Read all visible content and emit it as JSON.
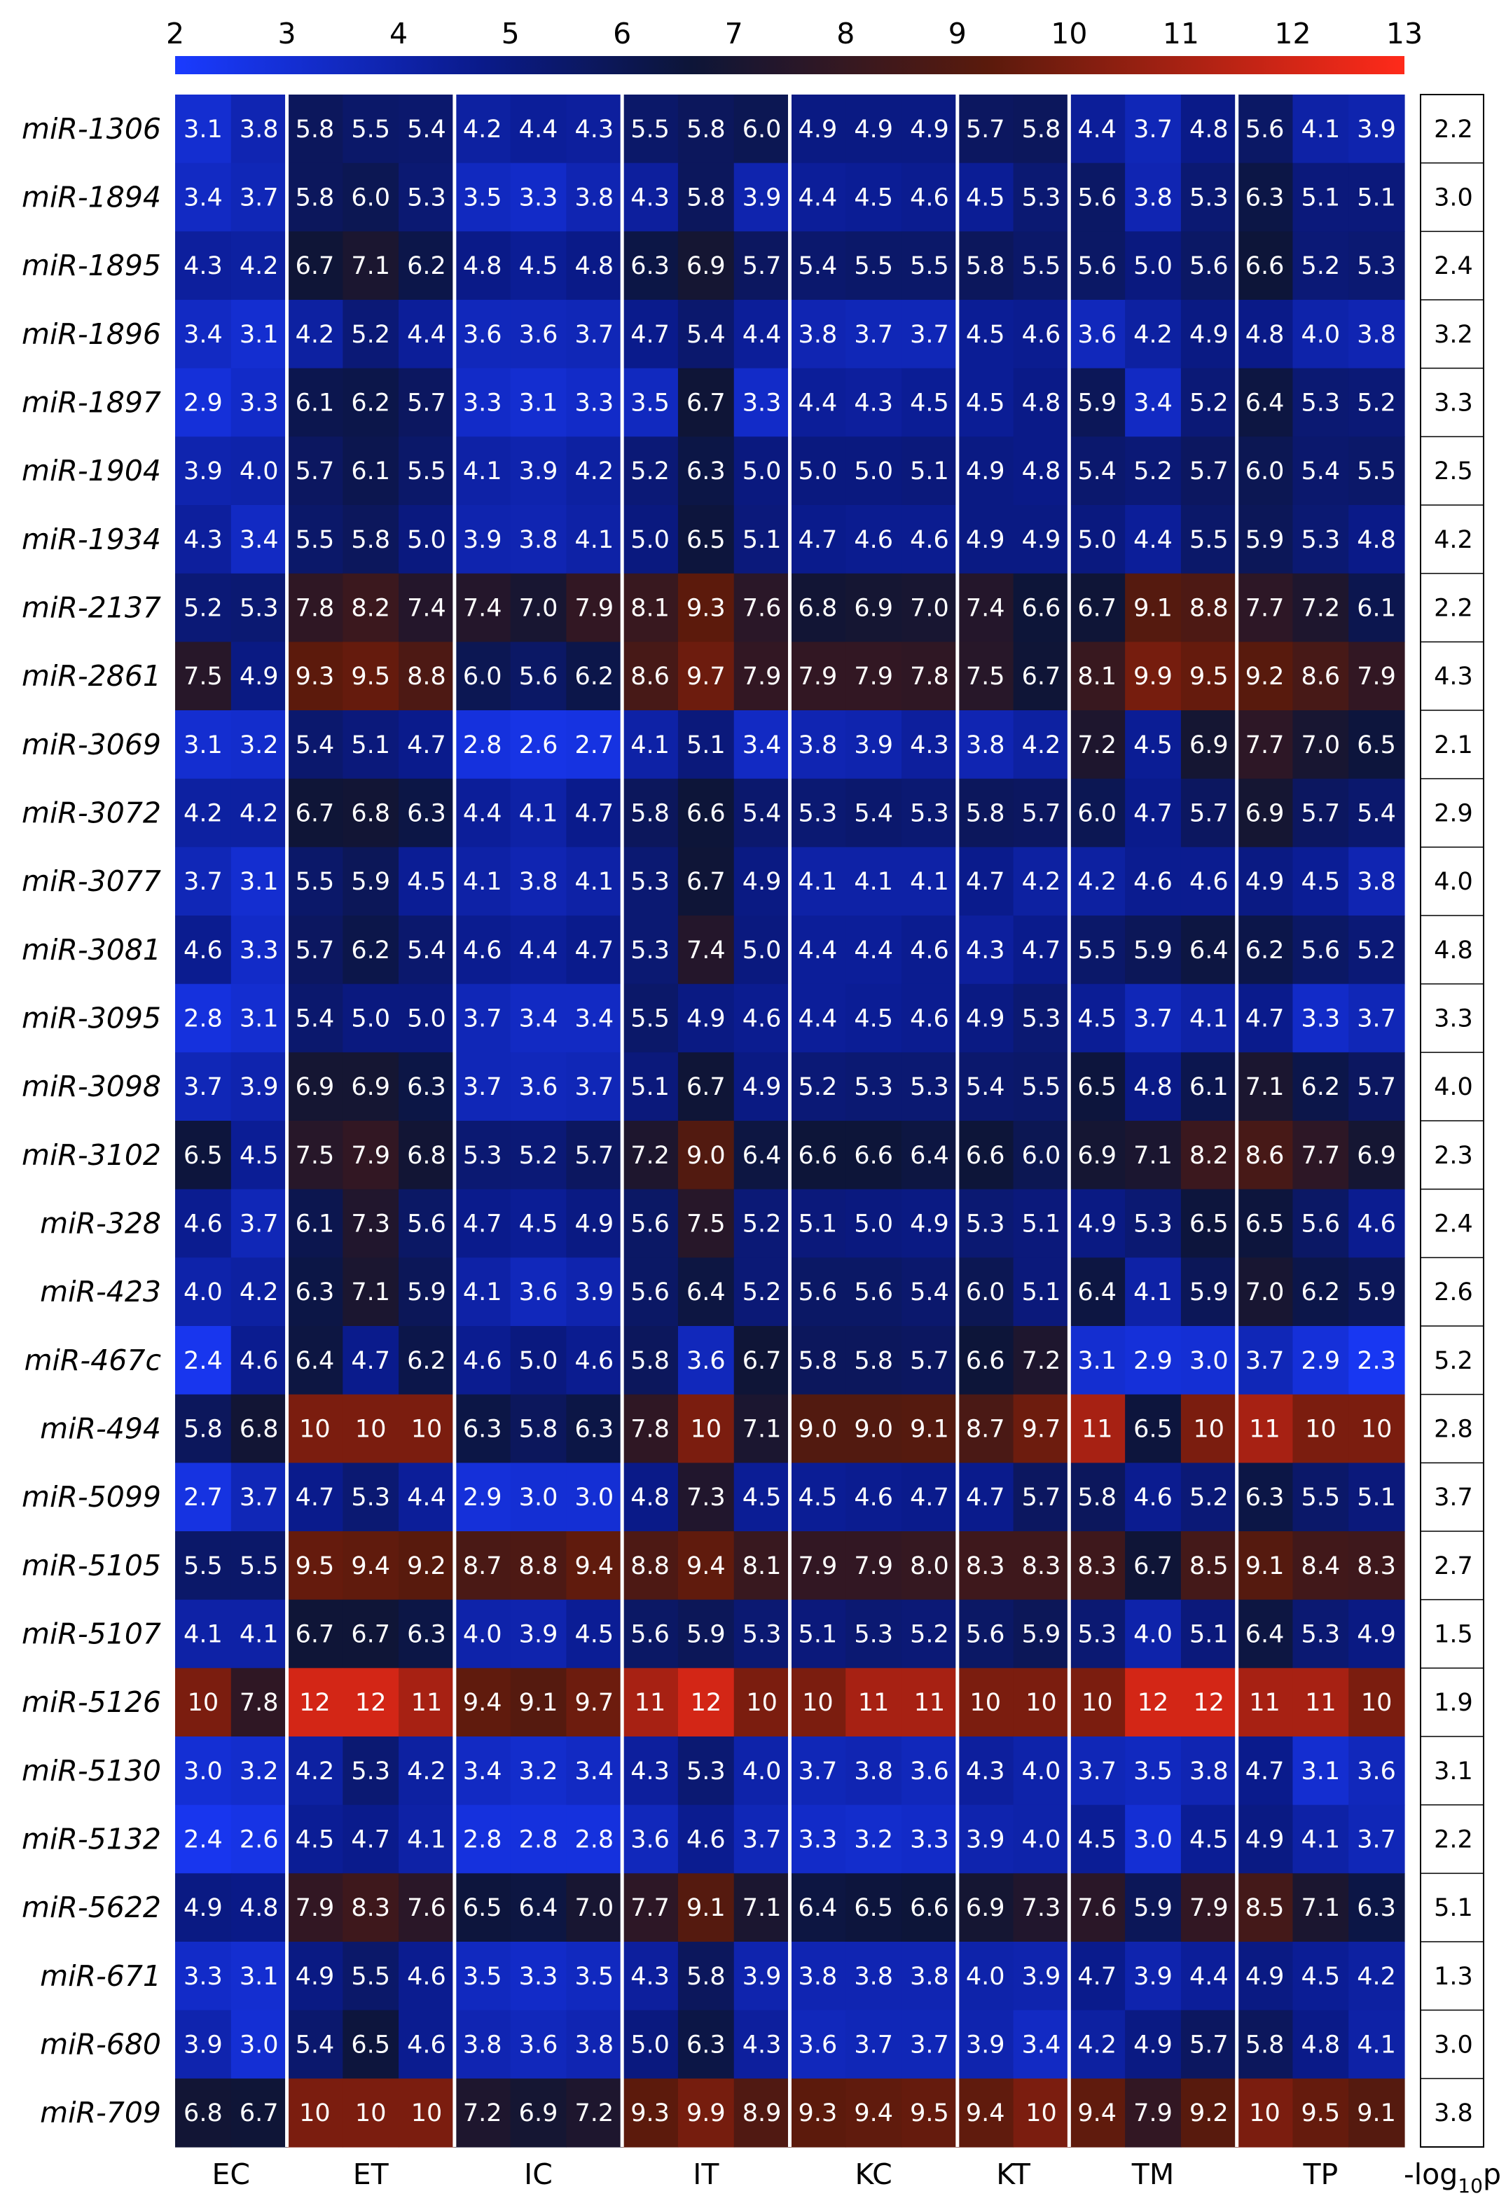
{
  "chart_data": {
    "type": "heatmap",
    "colorbar": {
      "ticks": [
        "2",
        "3",
        "4",
        "5",
        "6",
        "7",
        "8",
        "9",
        "10",
        "11",
        "12",
        "13"
      ],
      "range": [
        2,
        13
      ],
      "colors": [
        "#1a3bff",
        "#0a1a8a",
        "#0d1538",
        "#5a1a0c",
        "#ff2a1a"
      ]
    },
    "groups": [
      {
        "name": "EC",
        "replicates": 2
      },
      {
        "name": "ET",
        "replicates": 3
      },
      {
        "name": "IC",
        "replicates": 3
      },
      {
        "name": "IT",
        "replicates": 3
      },
      {
        "name": "KC",
        "replicates": 3
      },
      {
        "name": "KT",
        "replicates": 2
      },
      {
        "name": "TM",
        "replicates": 3
      },
      {
        "name": "TP",
        "replicates": 3
      }
    ],
    "pvalue_label": "-log10p",
    "rows": [
      {
        "label": "miR-1306",
        "values": [
          "3.1",
          "3.8",
          "5.8",
          "5.5",
          "5.4",
          "4.2",
          "4.4",
          "4.3",
          "5.5",
          "5.8",
          "6.0",
          "4.9",
          "4.9",
          "4.9",
          "5.7",
          "5.8",
          "4.4",
          "3.7",
          "4.8",
          "5.6",
          "4.1",
          "3.9"
        ],
        "p": "2.2"
      },
      {
        "label": "miR-1894",
        "values": [
          "3.4",
          "3.7",
          "5.8",
          "6.0",
          "5.3",
          "3.5",
          "3.3",
          "3.8",
          "4.3",
          "5.8",
          "3.9",
          "4.4",
          "4.5",
          "4.6",
          "4.5",
          "5.3",
          "5.6",
          "3.8",
          "5.3",
          "6.3",
          "5.1",
          "5.1"
        ],
        "p": "3.0"
      },
      {
        "label": "miR-1895",
        "values": [
          "4.3",
          "4.2",
          "6.7",
          "7.1",
          "6.2",
          "4.8",
          "4.5",
          "4.8",
          "6.3",
          "6.9",
          "5.7",
          "5.4",
          "5.5",
          "5.5",
          "5.8",
          "5.5",
          "5.6",
          "5.0",
          "5.6",
          "6.6",
          "5.2",
          "5.3"
        ],
        "p": "2.4"
      },
      {
        "label": "miR-1896",
        "values": [
          "3.4",
          "3.1",
          "4.2",
          "5.2",
          "4.4",
          "3.6",
          "3.6",
          "3.7",
          "4.7",
          "5.4",
          "4.4",
          "3.8",
          "3.7",
          "3.7",
          "4.5",
          "4.6",
          "3.6",
          "4.2",
          "4.9",
          "4.8",
          "4.0",
          "3.8"
        ],
        "p": "3.2"
      },
      {
        "label": "miR-1897",
        "values": [
          "2.9",
          "3.3",
          "6.1",
          "6.2",
          "5.7",
          "3.3",
          "3.1",
          "3.3",
          "3.5",
          "6.7",
          "3.3",
          "4.4",
          "4.3",
          "4.5",
          "4.5",
          "4.8",
          "5.9",
          "3.4",
          "5.2",
          "6.4",
          "5.3",
          "5.2"
        ],
        "p": "3.3"
      },
      {
        "label": "miR-1904",
        "values": [
          "3.9",
          "4.0",
          "5.7",
          "6.1",
          "5.5",
          "4.1",
          "3.9",
          "4.2",
          "5.2",
          "6.3",
          "5.0",
          "5.0",
          "5.0",
          "5.1",
          "4.9",
          "4.8",
          "5.4",
          "5.2",
          "5.7",
          "6.0",
          "5.4",
          "5.5"
        ],
        "p": "2.5"
      },
      {
        "label": "miR-1934",
        "values": [
          "4.3",
          "3.4",
          "5.5",
          "5.8",
          "5.0",
          "3.9",
          "3.8",
          "4.1",
          "5.0",
          "6.5",
          "5.1",
          "4.7",
          "4.6",
          "4.6",
          "4.9",
          "4.9",
          "5.0",
          "4.4",
          "5.5",
          "5.9",
          "5.3",
          "4.8"
        ],
        "p": "4.2"
      },
      {
        "label": "miR-2137",
        "values": [
          "5.2",
          "5.3",
          "7.8",
          "8.2",
          "7.4",
          "7.4",
          "7.0",
          "7.9",
          "8.1",
          "9.3",
          "7.6",
          "6.8",
          "6.9",
          "7.0",
          "7.4",
          "6.6",
          "6.7",
          "9.1",
          "8.8",
          "7.7",
          "7.2",
          "6.1"
        ],
        "p": "2.2"
      },
      {
        "label": "miR-2861",
        "values": [
          "7.5",
          "4.9",
          "9.3",
          "9.5",
          "8.8",
          "6.0",
          "5.6",
          "6.2",
          "8.6",
          "9.7",
          "7.9",
          "7.9",
          "7.9",
          "7.8",
          "7.5",
          "6.7",
          "8.1",
          "9.9",
          "9.5",
          "9.2",
          "8.6",
          "7.9"
        ],
        "p": "4.3"
      },
      {
        "label": "miR-3069",
        "values": [
          "3.1",
          "3.2",
          "5.4",
          "5.1",
          "4.7",
          "2.8",
          "2.6",
          "2.7",
          "4.1",
          "5.1",
          "3.4",
          "3.8",
          "3.9",
          "4.3",
          "3.8",
          "4.2",
          "7.2",
          "4.5",
          "6.9",
          "7.7",
          "7.0",
          "6.5"
        ],
        "p": "2.1"
      },
      {
        "label": "miR-3072",
        "values": [
          "4.2",
          "4.2",
          "6.7",
          "6.8",
          "6.3",
          "4.4",
          "4.1",
          "4.7",
          "5.8",
          "6.6",
          "5.4",
          "5.3",
          "5.4",
          "5.3",
          "5.8",
          "5.7",
          "6.0",
          "4.7",
          "5.7",
          "6.9",
          "5.7",
          "5.4"
        ],
        "p": "2.9"
      },
      {
        "label": "miR-3077",
        "values": [
          "3.7",
          "3.1",
          "5.5",
          "5.9",
          "4.5",
          "4.1",
          "3.8",
          "4.1",
          "5.3",
          "6.7",
          "4.9",
          "4.1",
          "4.1",
          "4.1",
          "4.7",
          "4.2",
          "4.2",
          "4.6",
          "4.6",
          "4.9",
          "4.5",
          "3.8"
        ],
        "p": "4.0"
      },
      {
        "label": "miR-3081",
        "values": [
          "4.6",
          "3.3",
          "5.7",
          "6.2",
          "5.4",
          "4.6",
          "4.4",
          "4.7",
          "5.3",
          "7.4",
          "5.0",
          "4.4",
          "4.4",
          "4.6",
          "4.3",
          "4.7",
          "5.5",
          "5.9",
          "6.4",
          "6.2",
          "5.6",
          "5.2"
        ],
        "p": "4.8"
      },
      {
        "label": "miR-3095",
        "values": [
          "2.8",
          "3.1",
          "5.4",
          "5.0",
          "5.0",
          "3.7",
          "3.4",
          "3.4",
          "5.5",
          "4.9",
          "4.6",
          "4.4",
          "4.5",
          "4.6",
          "4.9",
          "5.3",
          "4.5",
          "3.7",
          "4.1",
          "4.7",
          "3.3",
          "3.7"
        ],
        "p": "3.3"
      },
      {
        "label": "miR-3098",
        "values": [
          "3.7",
          "3.9",
          "6.9",
          "6.9",
          "6.3",
          "3.7",
          "3.6",
          "3.7",
          "5.1",
          "6.7",
          "4.9",
          "5.2",
          "5.3",
          "5.3",
          "5.4",
          "5.5",
          "6.5",
          "4.8",
          "6.1",
          "7.1",
          "6.2",
          "5.7"
        ],
        "p": "4.0"
      },
      {
        "label": "miR-3102",
        "values": [
          "6.5",
          "4.5",
          "7.5",
          "7.9",
          "6.8",
          "5.3",
          "5.2",
          "5.7",
          "7.2",
          "9.0",
          "6.4",
          "6.6",
          "6.6",
          "6.4",
          "6.6",
          "6.0",
          "6.9",
          "7.1",
          "8.2",
          "8.6",
          "7.7",
          "6.9"
        ],
        "p": "2.3"
      },
      {
        "label": "miR-328",
        "values": [
          "4.6",
          "3.7",
          "6.1",
          "7.3",
          "5.6",
          "4.7",
          "4.5",
          "4.9",
          "5.6",
          "7.5",
          "5.2",
          "5.1",
          "5.0",
          "4.9",
          "5.3",
          "5.1",
          "4.9",
          "5.3",
          "6.5",
          "6.5",
          "5.6",
          "4.6"
        ],
        "p": "2.4"
      },
      {
        "label": "miR-423",
        "values": [
          "4.0",
          "4.2",
          "6.3",
          "7.1",
          "5.9",
          "4.1",
          "3.6",
          "3.9",
          "5.6",
          "6.4",
          "5.2",
          "5.6",
          "5.6",
          "5.4",
          "6.0",
          "5.1",
          "6.4",
          "4.1",
          "5.9",
          "7.0",
          "6.2",
          "5.9"
        ],
        "p": "2.6"
      },
      {
        "label": "miR-467c",
        "values": [
          "2.4",
          "4.6",
          "6.4",
          "4.7",
          "6.2",
          "4.6",
          "5.0",
          "4.6",
          "5.8",
          "3.6",
          "6.7",
          "5.8",
          "5.8",
          "5.7",
          "6.6",
          "7.2",
          "3.1",
          "2.9",
          "3.0",
          "3.7",
          "2.9",
          "2.3"
        ],
        "p": "5.2"
      },
      {
        "label": "miR-494",
        "values": [
          "5.8",
          "6.8",
          "10",
          "10",
          "10",
          "6.3",
          "5.8",
          "6.3",
          "7.8",
          "10",
          "7.1",
          "9.0",
          "9.0",
          "9.1",
          "8.7",
          "9.7",
          "11",
          "6.5",
          "10",
          "11",
          "10",
          "10"
        ],
        "p": "2.8"
      },
      {
        "label": "miR-5099",
        "values": [
          "2.7",
          "3.7",
          "4.7",
          "5.3",
          "4.4",
          "2.9",
          "3.0",
          "3.0",
          "4.8",
          "7.3",
          "4.5",
          "4.5",
          "4.6",
          "4.7",
          "4.7",
          "5.7",
          "5.8",
          "4.6",
          "5.2",
          "6.3",
          "5.5",
          "5.1"
        ],
        "p": "3.7"
      },
      {
        "label": "miR-5105",
        "values": [
          "5.5",
          "5.5",
          "9.5",
          "9.4",
          "9.2",
          "8.7",
          "8.8",
          "9.4",
          "8.8",
          "9.4",
          "8.1",
          "7.9",
          "7.9",
          "8.0",
          "8.3",
          "8.3",
          "8.3",
          "6.7",
          "8.5",
          "9.1",
          "8.4",
          "8.3"
        ],
        "p": "2.7"
      },
      {
        "label": "miR-5107",
        "values": [
          "4.1",
          "4.1",
          "6.7",
          "6.7",
          "6.3",
          "4.0",
          "3.9",
          "4.5",
          "5.6",
          "5.9",
          "5.3",
          "5.1",
          "5.3",
          "5.2",
          "5.6",
          "5.9",
          "5.3",
          "4.0",
          "5.1",
          "6.4",
          "5.3",
          "4.9"
        ],
        "p": "1.5"
      },
      {
        "label": "miR-5126",
        "values": [
          "10",
          "7.8",
          "12",
          "12",
          "11",
          "9.4",
          "9.1",
          "9.7",
          "11",
          "12",
          "10",
          "10",
          "11",
          "11",
          "10",
          "10",
          "10",
          "12",
          "12",
          "11",
          "11",
          "10"
        ],
        "p": "1.9"
      },
      {
        "label": "miR-5130",
        "values": [
          "3.0",
          "3.2",
          "4.2",
          "5.3",
          "4.2",
          "3.4",
          "3.2",
          "3.4",
          "4.3",
          "5.3",
          "4.0",
          "3.7",
          "3.8",
          "3.6",
          "4.3",
          "4.0",
          "3.7",
          "3.5",
          "3.8",
          "4.7",
          "3.1",
          "3.6"
        ],
        "p": "3.1"
      },
      {
        "label": "miR-5132",
        "values": [
          "2.4",
          "2.6",
          "4.5",
          "4.7",
          "4.1",
          "2.8",
          "2.8",
          "2.8",
          "3.6",
          "4.6",
          "3.7",
          "3.3",
          "3.2",
          "3.3",
          "3.9",
          "4.0",
          "4.5",
          "3.0",
          "4.5",
          "4.9",
          "4.1",
          "3.7"
        ],
        "p": "2.2"
      },
      {
        "label": "miR-5622",
        "values": [
          "4.9",
          "4.8",
          "7.9",
          "8.3",
          "7.6",
          "6.5",
          "6.4",
          "7.0",
          "7.7",
          "9.1",
          "7.1",
          "6.4",
          "6.5",
          "6.6",
          "6.9",
          "7.3",
          "7.6",
          "5.9",
          "7.9",
          "8.5",
          "7.1",
          "6.3"
        ],
        "p": "5.1"
      },
      {
        "label": "miR-671",
        "values": [
          "3.3",
          "3.1",
          "4.9",
          "5.5",
          "4.6",
          "3.5",
          "3.3",
          "3.5",
          "4.3",
          "5.8",
          "3.9",
          "3.8",
          "3.8",
          "3.8",
          "4.0",
          "3.9",
          "4.7",
          "3.9",
          "4.4",
          "4.9",
          "4.5",
          "4.2"
        ],
        "p": "1.3"
      },
      {
        "label": "miR-680",
        "values": [
          "3.9",
          "3.0",
          "5.4",
          "6.5",
          "4.6",
          "3.8",
          "3.6",
          "3.8",
          "5.0",
          "6.3",
          "4.3",
          "3.6",
          "3.7",
          "3.7",
          "3.9",
          "3.4",
          "4.2",
          "4.9",
          "5.7",
          "5.8",
          "4.8",
          "4.1"
        ],
        "p": "3.0"
      },
      {
        "label": "miR-709",
        "values": [
          "6.8",
          "6.7",
          "10",
          "10",
          "10",
          "7.2",
          "6.9",
          "7.2",
          "9.3",
          "9.9",
          "8.9",
          "9.3",
          "9.4",
          "9.5",
          "9.4",
          "10",
          "9.4",
          "7.9",
          "9.2",
          "10",
          "9.5",
          "9.1"
        ],
        "p": "3.8"
      }
    ]
  }
}
